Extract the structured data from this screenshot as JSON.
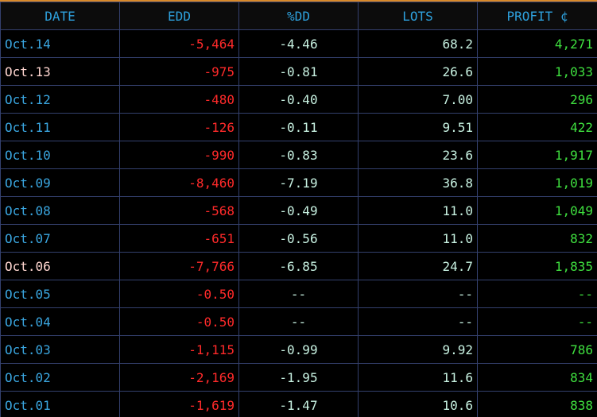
{
  "table": {
    "header": [
      "DATE",
      "EDD",
      "%DD",
      "LOTS",
      "PROFIT ¢"
    ],
    "rows": [
      {
        "cells": [
          "Oct.14",
          "-5,464",
          "-4.46",
          "68.2",
          "4,271"
        ],
        "date_color": "#3aa6e0"
      },
      {
        "cells": [
          "Oct.13",
          "-975",
          "-0.81",
          "26.6",
          "1,033"
        ],
        "date_color": "#ffd6d0"
      },
      {
        "cells": [
          "Oct.12",
          "-480",
          "-0.40",
          "7.00",
          "296"
        ],
        "date_color": "#3aa6e0"
      },
      {
        "cells": [
          "Oct.11",
          "-126",
          "-0.11",
          "9.51",
          "422"
        ],
        "date_color": "#3aa6e0"
      },
      {
        "cells": [
          "Oct.10",
          "-990",
          "-0.83",
          "23.6",
          "1,917"
        ],
        "date_color": "#3aa6e0"
      },
      {
        "cells": [
          "Oct.09",
          "-8,460",
          "-7.19",
          "36.8",
          "1,019"
        ],
        "date_color": "#3aa6e0"
      },
      {
        "cells": [
          "Oct.08",
          "-568",
          "-0.49",
          "11.0",
          "1,049"
        ],
        "date_color": "#3aa6e0"
      },
      {
        "cells": [
          "Oct.07",
          "-651",
          "-0.56",
          "11.0",
          "832"
        ],
        "date_color": "#3aa6e0"
      },
      {
        "cells": [
          "Oct.06",
          "-7,766",
          "-6.85",
          "24.7",
          "1,835"
        ],
        "date_color": "#ffd6d0"
      },
      {
        "cells": [
          "Oct.05",
          "-0.50",
          "--",
          "--",
          "--"
        ],
        "date_color": "#3aa6e0"
      },
      {
        "cells": [
          "Oct.04",
          "-0.50",
          "--",
          "--",
          "--"
        ],
        "date_color": "#3aa6e0"
      },
      {
        "cells": [
          "Oct.03",
          "-1,115",
          "-0.99",
          "9.92",
          "786"
        ],
        "date_color": "#3aa6e0"
      },
      {
        "cells": [
          "Oct.02",
          "-2,169",
          "-1.95",
          "11.6",
          "834"
        ],
        "date_color": "#3aa6e0"
      },
      {
        "cells": [
          "Oct.01",
          "-1,619",
          "-1.47",
          "10.6",
          "838"
        ],
        "date_color": "#3aa6e0"
      }
    ]
  }
}
